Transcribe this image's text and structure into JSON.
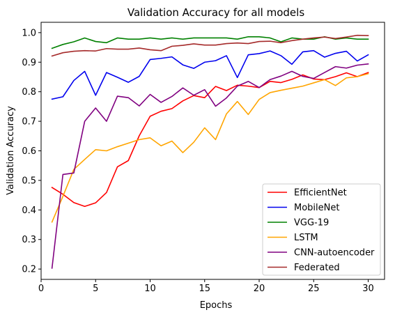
{
  "chart_data": {
    "type": "line",
    "title": "Validation Accuracy for all models",
    "xlabel": "Epochs",
    "ylabel": "Validation Accuracy",
    "xlim": [
      0,
      31.5
    ],
    "ylim": [
      0.165,
      1.035
    ],
    "xticks": [
      0,
      5,
      10,
      15,
      20,
      25,
      30
    ],
    "yticks": [
      0.2,
      0.3,
      0.4,
      0.5,
      0.6,
      0.7,
      0.8,
      0.9,
      1.0
    ],
    "ytick_labels": [
      "0.2",
      "0.3",
      "0.4",
      "0.5",
      "0.6",
      "0.7",
      "0.8",
      "0.9",
      "1.0"
    ],
    "grid": false,
    "legend_position": "lower-right",
    "x": [
      1,
      2,
      3,
      4,
      5,
      6,
      7,
      8,
      9,
      10,
      11,
      12,
      13,
      14,
      15,
      16,
      17,
      18,
      19,
      20,
      21,
      22,
      23,
      24,
      25,
      26,
      27,
      28,
      29,
      30
    ],
    "series": [
      {
        "name": "EfficientNet",
        "color": "#ff0000",
        "values": [
          0.476,
          0.453,
          0.425,
          0.412,
          0.424,
          0.459,
          0.546,
          0.567,
          0.651,
          0.717,
          0.734,
          0.743,
          0.769,
          0.787,
          0.78,
          0.818,
          0.804,
          0.822,
          0.819,
          0.814,
          0.835,
          0.831,
          0.842,
          0.857,
          0.843,
          0.841,
          0.851,
          0.864,
          0.851,
          0.865
        ]
      },
      {
        "name": "MobileNet",
        "color": "#0000ee",
        "values": [
          0.775,
          0.783,
          0.838,
          0.869,
          0.788,
          0.865,
          0.849,
          0.832,
          0.852,
          0.909,
          0.913,
          0.918,
          0.891,
          0.879,
          0.9,
          0.905,
          0.922,
          0.848,
          0.925,
          0.929,
          0.938,
          0.922,
          0.893,
          0.935,
          0.939,
          0.917,
          0.93,
          0.937,
          0.904,
          0.925
        ]
      },
      {
        "name": "VGG-19",
        "color": "#008000",
        "values": [
          0.947,
          0.96,
          0.969,
          0.982,
          0.97,
          0.966,
          0.982,
          0.978,
          0.978,
          0.982,
          0.978,
          0.982,
          0.978,
          0.982,
          0.982,
          0.982,
          0.982,
          0.978,
          0.986,
          0.986,
          0.982,
          0.969,
          0.982,
          0.978,
          0.978,
          0.986,
          0.978,
          0.982,
          0.978,
          0.978
        ]
      },
      {
        "name": "LSTM",
        "color": "#ffa500",
        "values": [
          0.359,
          0.446,
          0.537,
          0.571,
          0.604,
          0.6,
          0.614,
          0.626,
          0.638,
          0.644,
          0.617,
          0.633,
          0.594,
          0.629,
          0.678,
          0.638,
          0.725,
          0.767,
          0.723,
          0.774,
          0.797,
          0.805,
          0.812,
          0.819,
          0.83,
          0.841,
          0.821,
          0.847,
          0.851,
          0.861
        ]
      },
      {
        "name": "CNN-autoencoder",
        "color": "#800080",
        "values": [
          0.203,
          0.52,
          0.525,
          0.7,
          0.745,
          0.7,
          0.785,
          0.78,
          0.752,
          0.791,
          0.764,
          0.784,
          0.813,
          0.788,
          0.807,
          0.751,
          0.779,
          0.819,
          0.835,
          0.814,
          0.841,
          0.853,
          0.869,
          0.852,
          0.845,
          0.865,
          0.885,
          0.88,
          0.89,
          0.894
        ]
      },
      {
        "name": "Federated",
        "color": "#a52a2a",
        "values": [
          0.921,
          0.932,
          0.937,
          0.939,
          0.938,
          0.946,
          0.944,
          0.944,
          0.948,
          0.942,
          0.939,
          0.954,
          0.957,
          0.962,
          0.958,
          0.958,
          0.963,
          0.965,
          0.963,
          0.97,
          0.971,
          0.966,
          0.973,
          0.978,
          0.982,
          0.985,
          0.98,
          0.985,
          0.991,
          0.99
        ]
      }
    ]
  }
}
